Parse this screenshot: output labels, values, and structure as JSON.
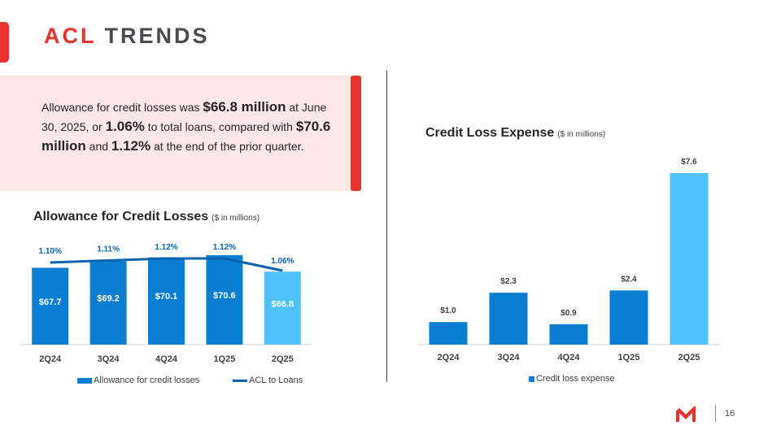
{
  "slide": {
    "title_accent": "ACL",
    "title_rest": "TRENDS",
    "page_number": "16",
    "accent_color": "#e8322c",
    "bar_color": "#0a7fd1",
    "highlight_bar_color": "#4fc3f7",
    "line_color": "#0b63b0"
  },
  "callout": {
    "p1": "Allowance for credit losses was ",
    "b1": "$66.8 million",
    "p2": " at June 30, 2025, or ",
    "b2": "1.06%",
    "p3": " to total loans, compared with ",
    "b3": "$70.6 million",
    "p4": " and ",
    "b4": "1.12%",
    "p5": " at the end of the prior quarter."
  },
  "chart_data": [
    {
      "type": "bar",
      "title": "Allowance for Credit Losses",
      "subtitle": "($ in millions)",
      "categories": [
        "2Q24",
        "3Q24",
        "4Q24",
        "1Q25",
        "2Q25"
      ],
      "series": [
        {
          "name": "Allowance for credit losses",
          "type": "bar",
          "values": [
            67.7,
            69.2,
            70.1,
            70.6,
            66.8
          ],
          "labels": [
            "$67.7",
            "$69.2",
            "$70.1",
            "$70.6",
            "$66.8"
          ]
        },
        {
          "name": "ACL to Loans",
          "type": "line",
          "values": [
            1.1,
            1.11,
            1.12,
            1.12,
            1.06
          ],
          "labels": [
            "1.10%",
            "1.11%",
            "1.12%",
            "1.12%",
            "1.06%"
          ]
        }
      ],
      "highlight_index": 4,
      "legend_position": "bottom"
    },
    {
      "type": "bar",
      "title": "Credit Loss Expense",
      "subtitle": "($ in millions)",
      "categories": [
        "2Q24",
        "3Q24",
        "4Q24",
        "1Q25",
        "2Q25"
      ],
      "series": [
        {
          "name": "Credit loss expense",
          "values": [
            1.0,
            2.3,
            0.9,
            2.4,
            7.6
          ],
          "labels": [
            "$1.0",
            "$2.3",
            "$0.9",
            "$2.4",
            "$7.6"
          ]
        }
      ],
      "highlight_index": 4,
      "legend_position": "bottom"
    }
  ]
}
